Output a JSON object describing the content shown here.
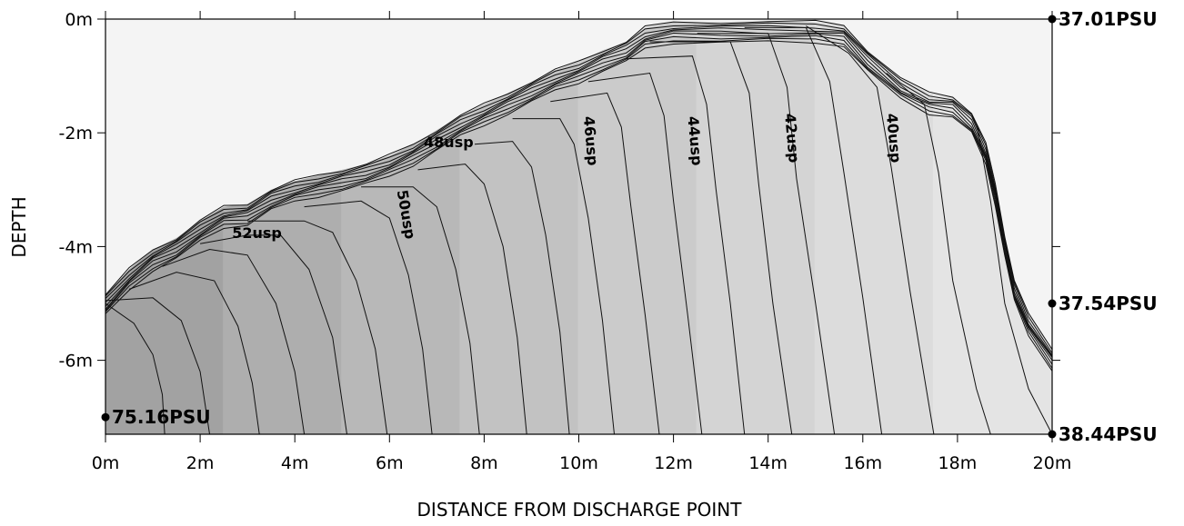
{
  "chart_data": {
    "type": "contour",
    "xlabel": "DISTANCE FROM DISCHARGE POINT",
    "ylabel": "DEPTH",
    "xlim": [
      0,
      20
    ],
    "ylim": [
      -7.3,
      0
    ],
    "x_ticks": [
      {
        "value": 0,
        "label": "0m"
      },
      {
        "value": 2,
        "label": "2m"
      },
      {
        "value": 4,
        "label": "4m"
      },
      {
        "value": 6,
        "label": "6m"
      },
      {
        "value": 8,
        "label": "8m"
      },
      {
        "value": 10,
        "label": "10m"
      },
      {
        "value": 12,
        "label": "12m"
      },
      {
        "value": 14,
        "label": "14m"
      },
      {
        "value": 16,
        "label": "16m"
      },
      {
        "value": 18,
        "label": "18m"
      },
      {
        "value": 20,
        "label": "20m"
      }
    ],
    "y_ticks": [
      {
        "value": 0,
        "label": "0m"
      },
      {
        "value": -2,
        "label": "-2m"
      },
      {
        "value": -4,
        "label": "-4m"
      },
      {
        "value": -6,
        "label": "-6m"
      }
    ],
    "contour_labels": [
      {
        "text": "52usp",
        "x": 3.2,
        "y": -3.85,
        "angle": 0
      },
      {
        "text": "50usp",
        "x": 6.25,
        "y": -3.45,
        "angle": 80
      },
      {
        "text": "48usp",
        "x": 7.25,
        "y": -2.25,
        "angle": 0
      },
      {
        "text": "46usp",
        "x": 10.15,
        "y": -2.15,
        "angle": 85
      },
      {
        "text": "44usp",
        "x": 12.35,
        "y": -2.15,
        "angle": 85
      },
      {
        "text": "42usp",
        "x": 14.4,
        "y": -2.1,
        "angle": 85
      },
      {
        "text": "40usp",
        "x": 16.55,
        "y": -2.1,
        "angle": 85
      }
    ],
    "salinity_points": [
      {
        "label": "37.01PSU",
        "x": 20,
        "y": 0
      },
      {
        "label": "37.54PSU",
        "x": 20,
        "y": -5.0
      },
      {
        "label": "38.44PSU",
        "x": 20,
        "y": -7.3
      },
      {
        "label": "75.16PSU",
        "x": 0,
        "y": -7.0
      }
    ],
    "plume_top": [
      [
        0,
        -4.85
      ],
      [
        0.5,
        -4.4
      ],
      [
        1,
        -4.05
      ],
      [
        1.5,
        -3.85
      ],
      [
        2,
        -3.55
      ],
      [
        2.5,
        -3.3
      ],
      [
        3,
        -3.25
      ],
      [
        3.5,
        -3.0
      ],
      [
        4,
        -2.85
      ],
      [
        4.5,
        -2.75
      ],
      [
        5,
        -2.65
      ],
      [
        5.5,
        -2.55
      ],
      [
        6,
        -2.4
      ],
      [
        6.5,
        -2.2
      ],
      [
        7,
        -1.95
      ],
      [
        7.5,
        -1.7
      ],
      [
        8,
        -1.5
      ],
      [
        8.5,
        -1.3
      ],
      [
        9,
        -1.1
      ],
      [
        9.5,
        -0.9
      ],
      [
        10,
        -0.75
      ],
      [
        10.5,
        -0.55
      ],
      [
        11,
        -0.4
      ],
      [
        11.4,
        -0.15
      ],
      [
        12,
        -0.05
      ],
      [
        13,
        -0.05
      ],
      [
        14,
        -0.05
      ],
      [
        15,
        -0.05
      ],
      [
        15.6,
        -0.1
      ],
      [
        16.1,
        -0.55
      ],
      [
        16.8,
        -1.05
      ],
      [
        17.4,
        -1.3
      ],
      [
        17.9,
        -1.35
      ],
      [
        18.3,
        -1.65
      ],
      [
        18.6,
        -2.2
      ],
      [
        18.8,
        -2.9
      ],
      [
        19.0,
        -3.8
      ],
      [
        19.2,
        -4.6
      ],
      [
        19.5,
        -5.2
      ],
      [
        20,
        -5.8
      ]
    ],
    "isolines": [
      [
        [
          0,
          -5.0
        ],
        [
          0.6,
          -5.35
        ],
        [
          1.0,
          -5.9
        ],
        [
          1.2,
          -6.6
        ],
        [
          1.25,
          -7.3
        ]
      ],
      [
        [
          0,
          -4.95
        ],
        [
          1.0,
          -4.9
        ],
        [
          1.6,
          -5.3
        ],
        [
          2.0,
          -6.2
        ],
        [
          2.2,
          -7.3
        ]
      ],
      [
        [
          0.5,
          -4.75
        ],
        [
          1.5,
          -4.45
        ],
        [
          2.3,
          -4.6
        ],
        [
          2.8,
          -5.4
        ],
        [
          3.1,
          -6.4
        ],
        [
          3.25,
          -7.3
        ]
      ],
      [
        [
          1.2,
          -4.35
        ],
        [
          2.2,
          -4.05
        ],
        [
          3.0,
          -4.15
        ],
        [
          3.6,
          -5.0
        ],
        [
          4.0,
          -6.2
        ],
        [
          4.2,
          -7.3
        ]
      ],
      [
        [
          2.0,
          -3.95
        ],
        [
          3.0,
          -3.8
        ],
        [
          3.7,
          -3.8
        ],
        [
          4.3,
          -4.4
        ],
        [
          4.8,
          -5.6
        ],
        [
          5.1,
          -7.3
        ]
      ],
      [
        [
          3.0,
          -3.55
        ],
        [
          4.2,
          -3.55
        ],
        [
          4.8,
          -3.75
        ],
        [
          5.3,
          -4.6
        ],
        [
          5.7,
          -5.8
        ],
        [
          5.95,
          -7.3
        ]
      ],
      [
        [
          4.2,
          -3.3
        ],
        [
          5.4,
          -3.2
        ],
        [
          6.0,
          -3.5
        ],
        [
          6.4,
          -4.5
        ],
        [
          6.7,
          -5.8
        ],
        [
          6.9,
          -7.3
        ]
      ],
      [
        [
          5.4,
          -2.95
        ],
        [
          6.5,
          -2.95
        ],
        [
          7.0,
          -3.3
        ],
        [
          7.4,
          -4.4
        ],
        [
          7.7,
          -5.7
        ],
        [
          7.9,
          -7.3
        ]
      ],
      [
        [
          6.6,
          -2.65
        ],
        [
          7.6,
          -2.55
        ],
        [
          8.0,
          -2.9
        ],
        [
          8.4,
          -4.0
        ],
        [
          8.7,
          -5.6
        ],
        [
          8.9,
          -7.3
        ]
      ],
      [
        [
          7.8,
          -2.2
        ],
        [
          8.6,
          -2.15
        ],
        [
          9.0,
          -2.6
        ],
        [
          9.3,
          -3.8
        ],
        [
          9.6,
          -5.5
        ],
        [
          9.8,
          -7.3
        ]
      ],
      [
        [
          8.6,
          -1.75
        ],
        [
          9.6,
          -1.75
        ],
        [
          9.9,
          -2.2
        ],
        [
          10.2,
          -3.5
        ],
        [
          10.5,
          -5.3
        ],
        [
          10.75,
          -7.3
        ]
      ],
      [
        [
          9.4,
          -1.45
        ],
        [
          10.6,
          -1.3
        ],
        [
          10.9,
          -1.9
        ],
        [
          11.1,
          -3.3
        ],
        [
          11.4,
          -5.2
        ],
        [
          11.7,
          -7.3
        ]
      ],
      [
        [
          10.2,
          -1.1
        ],
        [
          11.5,
          -0.95
        ],
        [
          11.8,
          -1.7
        ],
        [
          12.0,
          -3.2
        ],
        [
          12.3,
          -5.2
        ],
        [
          12.6,
          -7.3
        ]
      ],
      [
        [
          11.0,
          -0.7
        ],
        [
          12.4,
          -0.65
        ],
        [
          12.7,
          -1.5
        ],
        [
          12.9,
          -3.0
        ],
        [
          13.2,
          -5.0
        ],
        [
          13.5,
          -7.3
        ]
      ],
      [
        [
          11.5,
          -0.4
        ],
        [
          13.2,
          -0.4
        ],
        [
          13.6,
          -1.3
        ],
        [
          13.8,
          -2.9
        ],
        [
          14.1,
          -5.0
        ],
        [
          14.5,
          -7.3
        ]
      ],
      [
        [
          12.5,
          -0.25
        ],
        [
          14.0,
          -0.25
        ],
        [
          14.4,
          -1.2
        ],
        [
          14.6,
          -2.8
        ],
        [
          15.0,
          -5.0
        ],
        [
          15.4,
          -7.3
        ]
      ],
      [
        [
          13.5,
          -0.15
        ],
        [
          14.8,
          -0.15
        ],
        [
          15.3,
          -1.1
        ],
        [
          15.6,
          -2.7
        ],
        [
          16.0,
          -4.9
        ],
        [
          16.4,
          -7.3
        ]
      ],
      [
        [
          14.8,
          -0.12
        ],
        [
          15.7,
          -0.6
        ],
        [
          16.3,
          -1.2
        ],
        [
          16.6,
          -2.6
        ],
        [
          17.0,
          -4.8
        ],
        [
          17.5,
          -7.3
        ]
      ],
      [
        [
          16.5,
          -0.95
        ],
        [
          17.3,
          -1.5
        ],
        [
          17.6,
          -2.7
        ],
        [
          17.9,
          -4.6
        ],
        [
          18.4,
          -6.5
        ],
        [
          18.7,
          -7.3
        ]
      ],
      [
        [
          18.4,
          -1.8
        ],
        [
          18.7,
          -3.2
        ],
        [
          19.0,
          -5.0
        ],
        [
          19.5,
          -6.5
        ],
        [
          20,
          -7.3
        ]
      ]
    ],
    "colors": {
      "background": "#f4f4f4",
      "bands": [
        "#a2a2a2",
        "#aeaeae",
        "#b8b8b8",
        "#c2c2c2",
        "#cbcbcb",
        "#d4d4d4",
        "#dcdcdc",
        "#e4e4e4"
      ],
      "line": "#111111"
    }
  }
}
